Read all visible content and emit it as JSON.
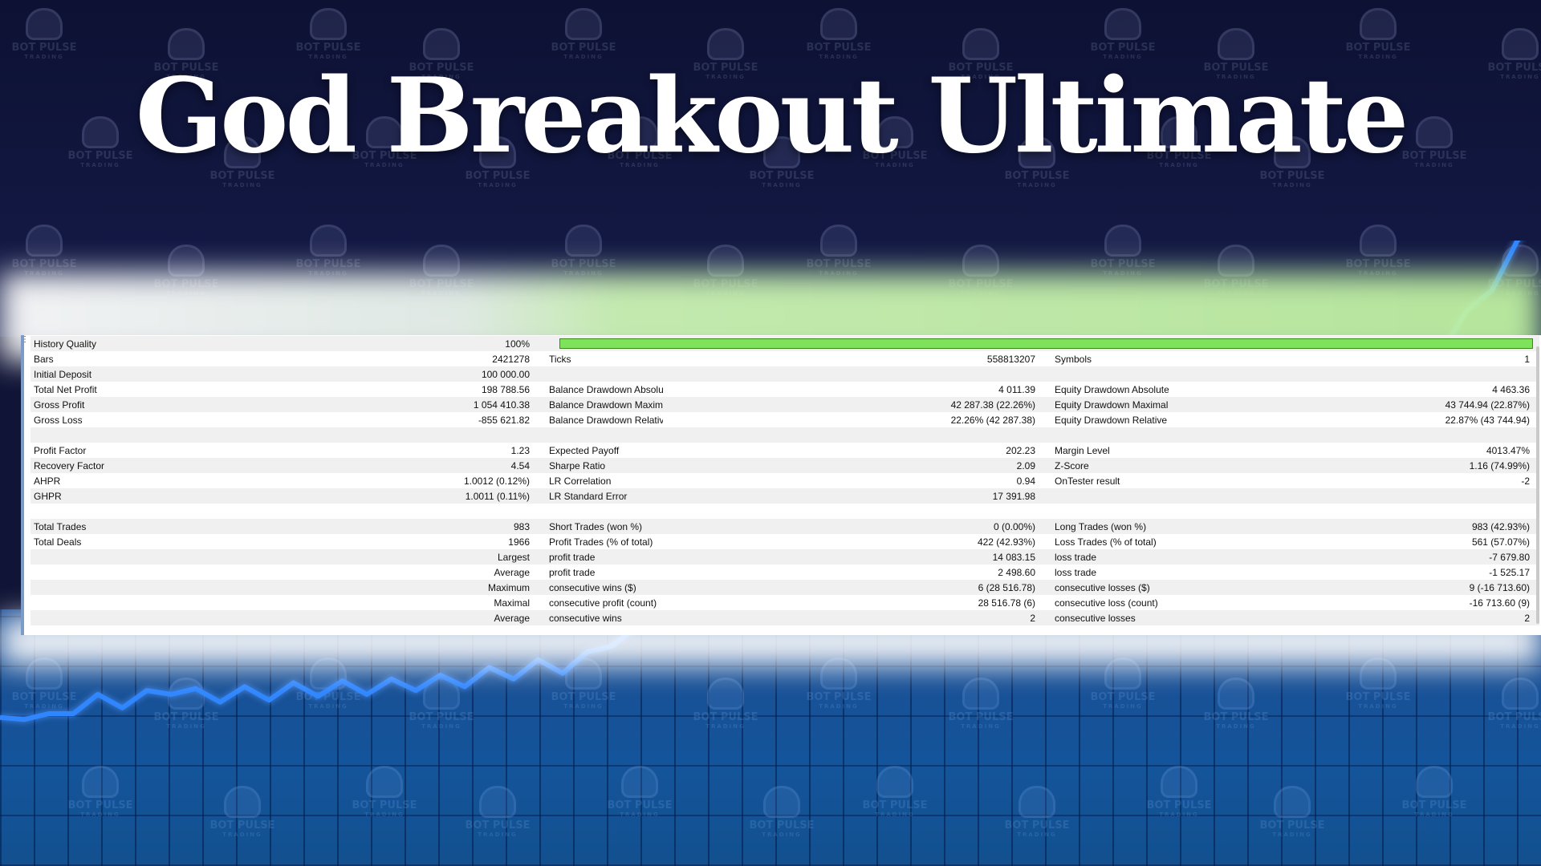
{
  "title": "God Breakout Ultimate",
  "colors": {
    "bg_top": "#0d1133",
    "bg_bottom": "#14549a",
    "equity_line": "#2f86ff",
    "quality_bar": "#7ee25a"
  },
  "watermark": {
    "line1": "BOT PULSE",
    "line2": "TRADING"
  },
  "equity_curve": {
    "series": [
      0.08,
      0.12,
      0.1,
      0.15,
      0.2,
      0.18,
      0.22,
      0.25,
      0.23,
      0.21,
      0.24,
      0.22,
      0.26,
      0.24,
      0.27,
      0.25,
      0.28,
      0.27,
      0.3,
      0.29,
      0.34,
      0.33,
      0.38,
      0.36,
      0.42,
      0.5,
      0.55,
      0.6,
      0.58,
      0.63,
      0.66,
      0.6,
      0.68,
      0.72,
      0.7,
      0.74,
      0.78,
      0.82,
      0.86,
      0.9,
      0.93,
      0.97,
      1.0,
      1.03,
      1.08,
      1.12,
      1.15,
      1.2,
      1.25,
      1.3,
      1.38,
      1.45,
      1.55,
      1.65,
      1.72,
      1.8,
      1.86,
      1.9,
      1.95,
      2.05,
      2.2,
      2.35,
      2.55,
      2.8
    ]
  },
  "report": {
    "history_quality": {
      "label": "History Quality",
      "value": "100%"
    },
    "rows": [
      [
        {
          "label": "Bars",
          "value": "2421278"
        },
        {
          "label": "Ticks",
          "value": "558813207"
        },
        {
          "label": "Symbols",
          "value": "1"
        }
      ],
      [
        {
          "label": "Initial Deposit",
          "value": "100 000.00"
        },
        {
          "label": "",
          "value": ""
        },
        {
          "label": "",
          "value": ""
        }
      ],
      [
        {
          "label": "Total Net Profit",
          "value": "198 788.56"
        },
        {
          "label": "Balance Drawdown Absolute",
          "value": "4 011.39"
        },
        {
          "label": "Equity Drawdown Absolute",
          "value": "4 463.36"
        }
      ],
      [
        {
          "label": "Gross Profit",
          "value": "1 054 410.38"
        },
        {
          "label": "Balance Drawdown Maximal",
          "value": "42 287.38 (22.26%)"
        },
        {
          "label": "Equity Drawdown Maximal",
          "value": "43 744.94 (22.87%)"
        }
      ],
      [
        {
          "label": "Gross Loss",
          "value": "-855 621.82"
        },
        {
          "label": "Balance Drawdown Relative",
          "value": "22.26% (42 287.38)"
        },
        {
          "label": "Equity Drawdown Relative",
          "value": "22.87% (43 744.94)"
        }
      ],
      [
        {
          "label": "",
          "value": ""
        },
        {
          "label": "",
          "value": ""
        },
        {
          "label": "",
          "value": ""
        }
      ],
      [
        {
          "label": "Profit Factor",
          "value": "1.23"
        },
        {
          "label": "Expected Payoff",
          "value": "202.23"
        },
        {
          "label": "Margin Level",
          "value": "4013.47%"
        }
      ],
      [
        {
          "label": "Recovery Factor",
          "value": "4.54"
        },
        {
          "label": "Sharpe Ratio",
          "value": "2.09"
        },
        {
          "label": "Z-Score",
          "value": "1.16 (74.99%)"
        }
      ],
      [
        {
          "label": "AHPR",
          "value": "1.0012 (0.12%)"
        },
        {
          "label": "LR Correlation",
          "value": "0.94"
        },
        {
          "label": "OnTester result",
          "value": "-2"
        }
      ],
      [
        {
          "label": "GHPR",
          "value": "1.0011 (0.11%)"
        },
        {
          "label": "LR Standard Error",
          "value": "17 391.98"
        },
        {
          "label": "",
          "value": ""
        }
      ],
      [
        {
          "label": "",
          "value": ""
        },
        {
          "label": "",
          "value": ""
        },
        {
          "label": "",
          "value": ""
        }
      ],
      [
        {
          "label": "Total Trades",
          "value": "983"
        },
        {
          "label": "Short Trades (won %)",
          "value": "0 (0.00%)"
        },
        {
          "label": "Long Trades (won %)",
          "value": "983 (42.93%)"
        }
      ],
      [
        {
          "label": "Total Deals",
          "value": "1966"
        },
        {
          "label": "Profit Trades (% of total)",
          "value": "422 (42.93%)"
        },
        {
          "label": "Loss Trades (% of total)",
          "value": "561 (57.07%)"
        }
      ],
      [
        {
          "label": "",
          "value": "Largest"
        },
        {
          "label": "profit trade",
          "value": "14 083.15"
        },
        {
          "label": "loss trade",
          "value": "-7 679.80"
        }
      ],
      [
        {
          "label": "",
          "value": "Average"
        },
        {
          "label": "profit trade",
          "value": "2 498.60"
        },
        {
          "label": "loss trade",
          "value": "-1 525.17"
        }
      ],
      [
        {
          "label": "",
          "value": "Maximum"
        },
        {
          "label": "consecutive wins ($)",
          "value": "6 (28 516.78)"
        },
        {
          "label": "consecutive losses ($)",
          "value": "9 (-16 713.60)"
        }
      ],
      [
        {
          "label": "",
          "value": "Maximal"
        },
        {
          "label": "consecutive profit (count)",
          "value": "28 516.78 (6)"
        },
        {
          "label": "consecutive loss (count)",
          "value": "-16 713.60 (9)"
        }
      ],
      [
        {
          "label": "",
          "value": "Average"
        },
        {
          "label": "consecutive wins",
          "value": "2"
        },
        {
          "label": "consecutive losses",
          "value": "2"
        }
      ]
    ]
  }
}
